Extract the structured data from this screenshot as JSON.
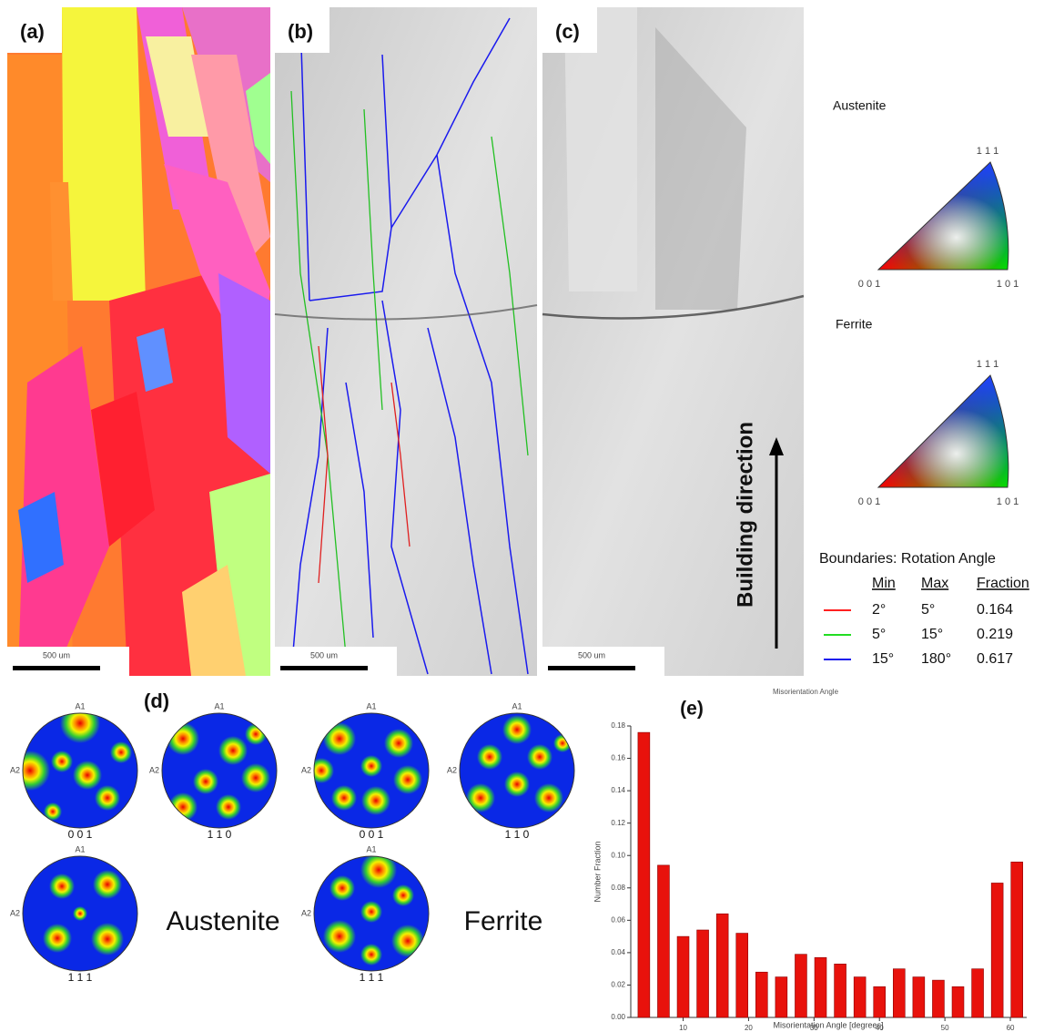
{
  "panels": {
    "a": {
      "label": "(a)",
      "scale_bar": "500 um"
    },
    "b": {
      "label": "(b)",
      "scale_bar": "500 um"
    },
    "c": {
      "label": "(c)",
      "scale_bar": "500 um"
    }
  },
  "ipf": {
    "austenite": {
      "title": "Austenite",
      "top": "1 1 1",
      "left": "0 0 1",
      "right": "1 0 1"
    },
    "ferrite": {
      "title": "Ferrite",
      "top": "1 1 1",
      "left": "0 0 1",
      "right": "1 0 1"
    }
  },
  "boundaries": {
    "title": "Boundaries: Rotation Angle",
    "header": [
      "Min",
      "Max",
      "Fraction"
    ],
    "rows": [
      [
        "2°",
        "5°",
        "0.164"
      ],
      [
        "5°",
        "15°",
        "0.219"
      ],
      [
        "15°",
        "180°",
        "0.617"
      ]
    ]
  },
  "building_direction": "Building direction",
  "pole_figures": {
    "label": "(d)",
    "austenite": "Austenite",
    "ferrite": "Ferrite",
    "axis_top": "A1",
    "axis_left": "A2",
    "figures": [
      {
        "plane": "0 0 1"
      },
      {
        "plane": "1 1 0"
      },
      {
        "plane": "0 0 1"
      },
      {
        "plane": "1 1 0"
      },
      {
        "plane": "1 1 1"
      },
      {
        "plane": "1 1 1"
      }
    ]
  },
  "chart_data": {
    "type": "bar",
    "panel_label": "(e)",
    "title": "Misorientation Angle",
    "x_label": "Misorientation Angle [degrees]",
    "y_label": "Number Fraction",
    "x": [
      4,
      7,
      10,
      13,
      16,
      19,
      22,
      25,
      28,
      31,
      34,
      37,
      40,
      43,
      46,
      49,
      52,
      55,
      58,
      61
    ],
    "values": [
      0.176,
      0.094,
      0.05,
      0.054,
      0.064,
      0.052,
      0.028,
      0.025,
      0.039,
      0.037,
      0.033,
      0.025,
      0.019,
      0.03,
      0.025,
      0.023,
      0.019,
      0.03,
      0.083,
      0.096
    ],
    "color": "#e8120c",
    "xlim": [
      2,
      62.5
    ],
    "xticks": [
      10,
      20,
      30,
      40,
      50,
      60
    ],
    "ylim": [
      0,
      0.18
    ],
    "yticks": [
      {
        "value": 0,
        "label": "0.00"
      },
      {
        "value": 0.02,
        "label": "0.02"
      },
      {
        "value": 0.04,
        "label": "0.04"
      },
      {
        "value": 0.06,
        "label": "0.06"
      },
      {
        "value": 0.08,
        "label": "0.08"
      },
      {
        "value": 0.1,
        "label": "0.10"
      },
      {
        "value": 0.12,
        "label": "0.12"
      },
      {
        "value": 0.14,
        "label": "0.14"
      },
      {
        "value": 0.16,
        "label": "0.16"
      },
      {
        "value": 0.18,
        "label": "0.18"
      }
    ]
  }
}
